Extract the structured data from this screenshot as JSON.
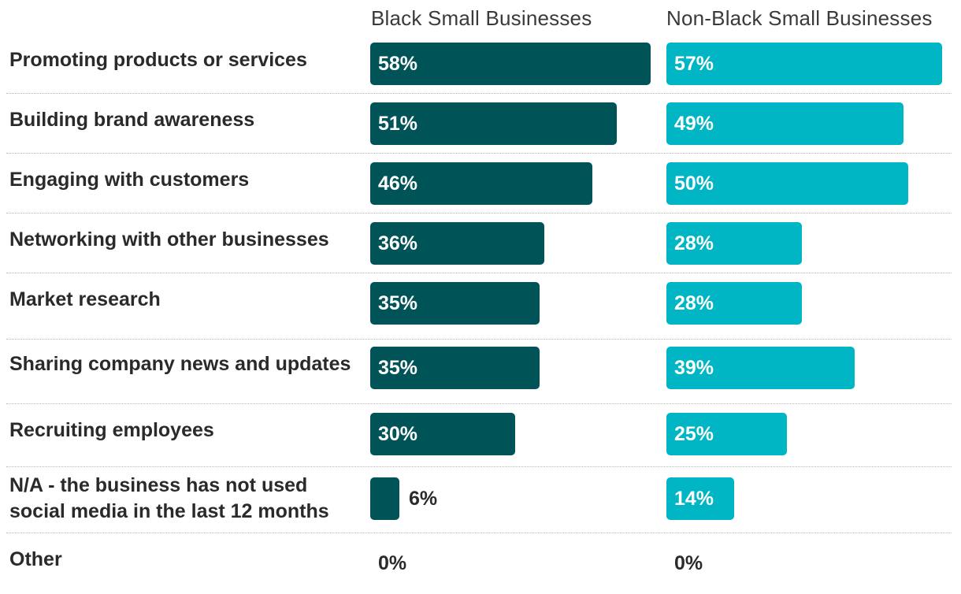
{
  "chart_data": {
    "type": "bar",
    "orientation": "horizontal",
    "title": "",
    "xlabel": "",
    "ylabel": "",
    "xlim": [
      0,
      60
    ],
    "grid": false,
    "legend": "column headers at top",
    "categories": [
      "Promoting products or services",
      "Building brand awareness",
      "Engaging with customers",
      "Networking with other businesses",
      "Market research",
      "Sharing company news and updates",
      "Recruiting employees",
      "N/A - the business has not used social media in the last 12 months",
      "Other"
    ],
    "series": [
      {
        "name": "Black Small Businesses",
        "color": "#005357",
        "values": [
          58,
          51,
          46,
          36,
          35,
          35,
          30,
          6,
          0
        ],
        "labels": [
          "58%",
          "51%",
          "46%",
          "36%",
          "35%",
          "35%",
          "30%",
          "6%",
          "0%"
        ]
      },
      {
        "name": "Non-Black Small Businesses",
        "color": "#00b5c4",
        "values": [
          57,
          49,
          50,
          28,
          28,
          39,
          25,
          14,
          0
        ],
        "labels": [
          "57%",
          "49%",
          "50%",
          "28%",
          "28%",
          "39%",
          "25%",
          "14%",
          "0%"
        ]
      }
    ]
  }
}
